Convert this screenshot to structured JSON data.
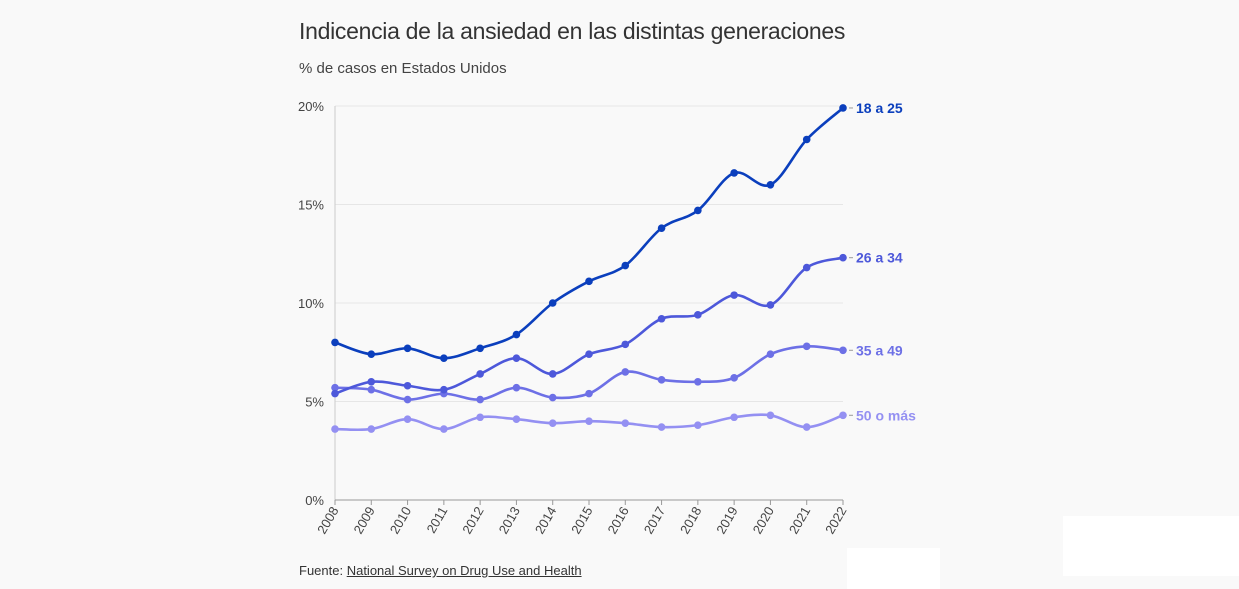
{
  "title": "Indicencia de la ansiedad en las distintas generaciones",
  "subtitle": "% de casos en Estados Unidos",
  "source": {
    "prefix": "Fuente: ",
    "link": "National Survey on Drug Use and Health"
  },
  "chart_data": {
    "type": "line",
    "title": "Indicencia de la ansiedad en las distintas generaciones",
    "subtitle": "% de casos en Estados Unidos",
    "x": [
      2008,
      2009,
      2010,
      2011,
      2012,
      2013,
      2014,
      2015,
      2016,
      2017,
      2018,
      2019,
      2020,
      2021,
      2022
    ],
    "ylim": [
      0,
      20
    ],
    "yticks": [
      0,
      5,
      10,
      15,
      20
    ],
    "ytick_labels": [
      "0%",
      "5%",
      "10%",
      "15%",
      "20%"
    ],
    "grid": true,
    "legend": "direct labels at right end of lines",
    "series": [
      {
        "name": "18 a 25",
        "color": "#0b3fbd",
        "values": [
          8.0,
          7.4,
          7.7,
          7.2,
          7.7,
          8.4,
          10.0,
          11.1,
          11.9,
          13.8,
          14.7,
          16.6,
          16.0,
          18.3,
          19.9
        ]
      },
      {
        "name": "26 a 34",
        "color": "#4d58da",
        "values": [
          5.4,
          6.0,
          5.8,
          5.6,
          6.4,
          7.2,
          6.4,
          7.4,
          7.9,
          9.2,
          9.4,
          10.4,
          9.9,
          11.8,
          12.3
        ]
      },
      {
        "name": "35 a 49",
        "color": "#6d70e6",
        "values": [
          5.7,
          5.6,
          5.1,
          5.4,
          5.1,
          5.7,
          5.2,
          5.4,
          6.5,
          6.1,
          6.0,
          6.2,
          7.4,
          7.8,
          7.6
        ]
      },
      {
        "name": "50 o más",
        "color": "#9490f2",
        "values": [
          3.6,
          3.6,
          4.1,
          3.6,
          4.2,
          4.1,
          3.9,
          4.0,
          3.9,
          3.7,
          3.8,
          4.2,
          4.3,
          3.7,
          4.3
        ]
      }
    ]
  }
}
